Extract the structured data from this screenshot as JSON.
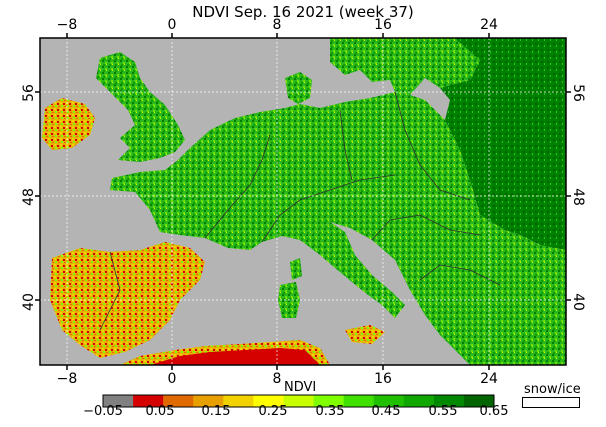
{
  "title": "NDVI Sep. 16 2021 (week 37)",
  "axes": {
    "lon_ticks": [
      "−8",
      "0",
      "8",
      "16",
      "24"
    ],
    "lat_ticks": [
      "56",
      "48",
      "40"
    ]
  },
  "legend": {
    "label": "NDVI",
    "values": [
      "−0.05",
      "0.05",
      "0.15",
      "0.25",
      "0.35",
      "0.45",
      "0.55",
      "0.65"
    ],
    "colors": [
      "#808080",
      "#d50000",
      "#e06a00",
      "#e8a000",
      "#f2d200",
      "#ffff00",
      "#c8ff00",
      "#80ff00",
      "#40e000",
      "#20c000",
      "#10a800",
      "#008800",
      "#006400"
    ],
    "snow_ice_label": "snow/ice"
  },
  "colors": {
    "water": "#b4b4b4",
    "land_low": "#f0e020",
    "land_mid": "#30c020",
    "land_high": "#008000",
    "border": "#303030"
  }
}
